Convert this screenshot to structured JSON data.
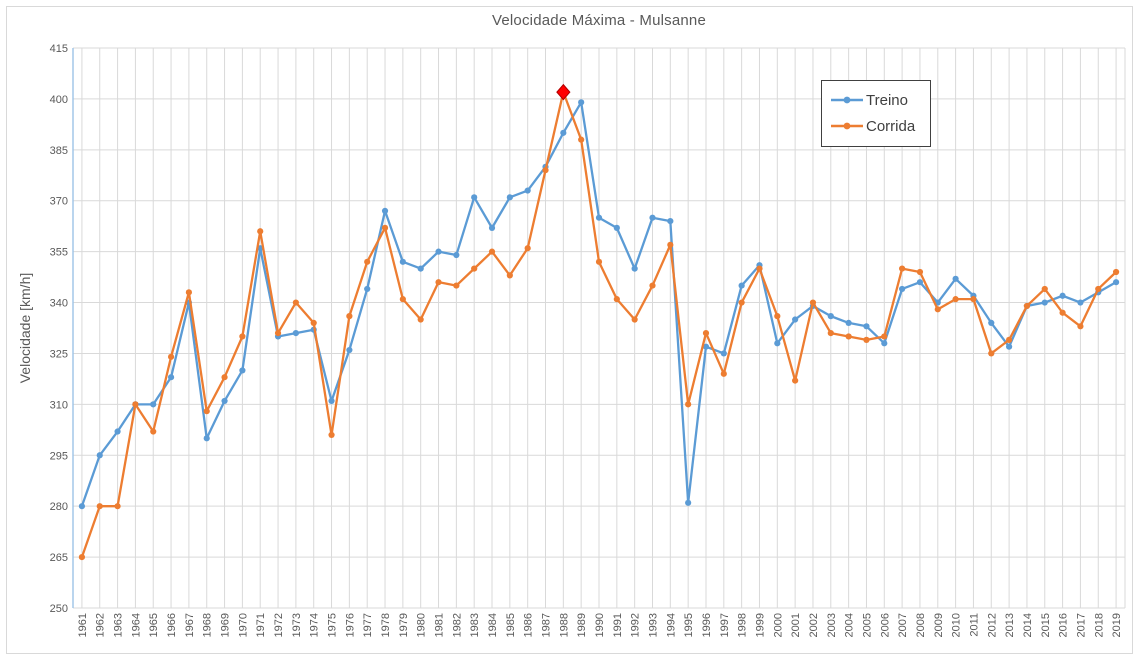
{
  "chart_data": {
    "type": "line",
    "title": "Velocidade Máxima - Mulsanne",
    "ylabel": "Velocidade [km/h]",
    "xlabel": "",
    "ylim": [
      250,
      415
    ],
    "ytick_step": 15,
    "grid": true,
    "legend_position": "top-right",
    "categories": [
      1961,
      1962,
      1963,
      1964,
      1965,
      1966,
      1967,
      1968,
      1969,
      1970,
      1971,
      1972,
      1973,
      1974,
      1975,
      1976,
      1977,
      1978,
      1979,
      1980,
      1981,
      1982,
      1983,
      1984,
      1985,
      1986,
      1987,
      1988,
      1989,
      1990,
      1991,
      1992,
      1993,
      1994,
      1995,
      1996,
      1997,
      1998,
      1999,
      2000,
      2001,
      2002,
      2003,
      2004,
      2005,
      2006,
      2007,
      2008,
      2009,
      2010,
      2011,
      2012,
      2013,
      2014,
      2015,
      2016,
      2017,
      2018,
      2019
    ],
    "series": [
      {
        "name": "Treino",
        "color": "#5B9BD5",
        "values": [
          280,
          295,
          302,
          310,
          310,
          318,
          340,
          300,
          311,
          320,
          356,
          330,
          331,
          332,
          311,
          326,
          344,
          367,
          352,
          350,
          355,
          354,
          371,
          362,
          371,
          373,
          380,
          390,
          399,
          365,
          362,
          350,
          365,
          364,
          281,
          327,
          325,
          345,
          351,
          328,
          335,
          339,
          336,
          334,
          333,
          328,
          344,
          346,
          340,
          347,
          342,
          334,
          327,
          339,
          340,
          342,
          340,
          343,
          346
        ]
      },
      {
        "name": "Corrida",
        "color": "#ED7D31",
        "values": [
          265,
          280,
          280,
          310,
          302,
          324,
          343,
          308,
          318,
          330,
          361,
          331,
          340,
          334,
          301,
          336,
          352,
          362,
          341,
          335,
          346,
          345,
          350,
          355,
          348,
          356,
          379,
          402,
          388,
          352,
          341,
          335,
          345,
          357,
          310,
          331,
          319,
          340,
          350,
          336,
          317,
          340,
          331,
          330,
          329,
          330,
          350,
          349,
          338,
          341,
          341,
          325,
          329,
          339,
          344,
          337,
          333,
          344,
          349
        ]
      }
    ],
    "annotations": [
      {
        "shape": "diamond",
        "series": "Corrida",
        "x": 1988,
        "y": 402,
        "color": "#FF0000",
        "edge_color": "#B00000"
      }
    ],
    "colors": {
      "grid": "#D9D9D9",
      "y_axis_line": "#9DC3E6",
      "x_axis_line": "#D9D9D9",
      "tick_text": "#595959",
      "title_text": "#595959",
      "legend_text": "#404040",
      "legend_border": "#404040",
      "background": "#FFFFFF"
    }
  }
}
